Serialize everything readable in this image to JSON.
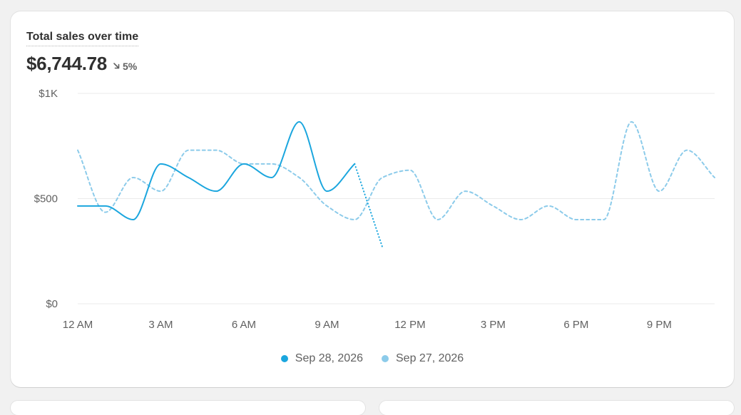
{
  "card": {
    "title": "Total sales over time",
    "value": "$6,744.78",
    "change": "5%",
    "change_icon": "arrow-down-right-icon"
  },
  "colors": {
    "current": "#1ba6de",
    "previous": "#8ccbea",
    "grid": "#ebebeb"
  },
  "chart_data": {
    "type": "line",
    "x_tick_labels": [
      "12 AM",
      "3 AM",
      "6 AM",
      "9 AM",
      "12 PM",
      "3 PM",
      "6 PM",
      "9 PM"
    ],
    "x_tick_hours": [
      0,
      3,
      6,
      9,
      12,
      15,
      18,
      21
    ],
    "y_tick_labels": [
      "$1K",
      "$500",
      "$0"
    ],
    "y_tick_values": [
      1000,
      500,
      0
    ],
    "xlim": [
      0,
      23
    ],
    "ylim": [
      0,
      1000
    ],
    "grid": true,
    "legend_position": "bottom-center",
    "series": [
      {
        "name": "Sep 28, 2026",
        "style": "solid",
        "color": "#1ba6de",
        "x": [
          0,
          1,
          2,
          3,
          4,
          5,
          6,
          7,
          8,
          9,
          10
        ],
        "y": [
          465,
          465,
          400,
          665,
          600,
          535,
          665,
          600,
          865,
          535,
          665
        ],
        "projection": {
          "x": [
            10,
            11
          ],
          "y": [
            665,
            270
          ]
        }
      },
      {
        "name": "Sep 27, 2026",
        "style": "dashed",
        "color": "#8ccbea",
        "x": [
          0,
          1,
          2,
          3,
          4,
          5,
          6,
          7,
          8,
          9,
          10,
          11,
          12,
          13,
          14,
          15,
          16,
          17,
          18,
          19,
          20,
          21,
          22,
          23
        ],
        "y": [
          730,
          435,
          600,
          535,
          730,
          730,
          665,
          665,
          600,
          465,
          400,
          600,
          635,
          400,
          535,
          465,
          400,
          465,
          400,
          400,
          865,
          535,
          730,
          600
        ]
      }
    ]
  },
  "legend": {
    "items": [
      {
        "label": "Sep 28, 2026",
        "color": "#1ba6de"
      },
      {
        "label": "Sep 27, 2026",
        "color": "#8ccbea"
      }
    ]
  }
}
